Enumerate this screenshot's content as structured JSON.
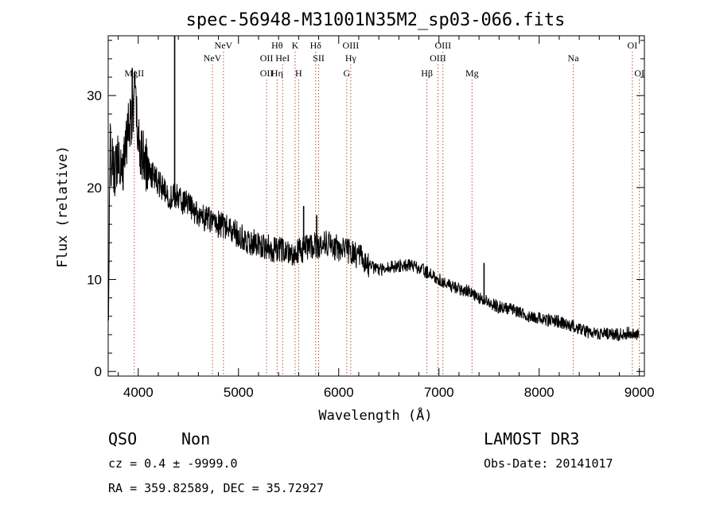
{
  "chart_data": {
    "type": "line",
    "title": "spec-56948-M31001N35M2_sp03-066.fits",
    "xlabel": "Wavelength (Å)",
    "ylabel": "Flux (relative)",
    "xlim": [
      3700,
      9050
    ],
    "ylim": [
      -0.5,
      36.5
    ],
    "x_ticks": [
      4000,
      5000,
      6000,
      7000,
      8000,
      9000
    ],
    "y_ticks": [
      0,
      10,
      20,
      30
    ],
    "anchors": [
      [
        3700,
        4.5
      ],
      [
        3720,
        24
      ],
      [
        3760,
        21
      ],
      [
        3800,
        24
      ],
      [
        3850,
        22
      ],
      [
        3900,
        27
      ],
      [
        3950,
        28
      ],
      [
        3960,
        31
      ],
      [
        4000,
        25
      ],
      [
        4050,
        23
      ],
      [
        4100,
        22
      ],
      [
        4200,
        20.5
      ],
      [
        4300,
        19
      ],
      [
        4400,
        19
      ],
      [
        4500,
        18
      ],
      [
        4600,
        17
      ],
      [
        4700,
        16.5
      ],
      [
        4800,
        16
      ],
      [
        4900,
        15.5
      ],
      [
        5000,
        14.8
      ],
      [
        5100,
        14.2
      ],
      [
        5200,
        13.8
      ],
      [
        5300,
        13.5
      ],
      [
        5400,
        13.2
      ],
      [
        5500,
        13
      ],
      [
        5600,
        13
      ],
      [
        5700,
        13.5
      ],
      [
        5800,
        13.8
      ],
      [
        5900,
        14
      ],
      [
        6000,
        13.3
      ],
      [
        6100,
        13
      ],
      [
        6200,
        12.5
      ],
      [
        6300,
        11.5
      ],
      [
        6400,
        11
      ],
      [
        6500,
        11.3
      ],
      [
        6600,
        11.5
      ],
      [
        6700,
        11.6
      ],
      [
        6800,
        11.2
      ],
      [
        6900,
        10.7
      ],
      [
        7000,
        10
      ],
      [
        7100,
        9.4
      ],
      [
        7200,
        9
      ],
      [
        7300,
        8.7
      ],
      [
        7400,
        8
      ],
      [
        7500,
        7.5
      ],
      [
        7600,
        7
      ],
      [
        7700,
        6.8
      ],
      [
        7800,
        6.5
      ],
      [
        7900,
        6
      ],
      [
        8000,
        5.8
      ],
      [
        8100,
        5.6
      ],
      [
        8200,
        5.4
      ],
      [
        8300,
        5
      ],
      [
        8400,
        4.6
      ],
      [
        8500,
        4.2
      ],
      [
        8600,
        4.1
      ],
      [
        8700,
        4.1
      ],
      [
        8800,
        4
      ],
      [
        8900,
        4.2
      ],
      [
        9000,
        4
      ]
    ],
    "spikes": [
      {
        "x": 4363,
        "y": 36.5
      },
      {
        "x": 5780,
        "y": 17
      },
      {
        "x": 5650,
        "y": 18
      },
      {
        "x": 7450,
        "y": 11.8
      },
      {
        "x": 3940,
        "y": 33
      }
    ],
    "lines": [
      {
        "name": "MgII",
        "x": 3960,
        "row": 3
      },
      {
        "name": "NeV",
        "x": 4740,
        "row": 2
      },
      {
        "name": "NeV",
        "x": 4850,
        "row": 1
      },
      {
        "name": "OII",
        "x": 5280,
        "row": 2
      },
      {
        "name": "OII",
        "x": 5280,
        "row": 3
      },
      {
        "name": "Hθ",
        "x": 5385,
        "row": 1
      },
      {
        "name": "Hη",
        "x": 5385,
        "row": 3
      },
      {
        "name": "HeI",
        "x": 5440,
        "row": 2
      },
      {
        "name": "K",
        "x": 5565,
        "row": 1
      },
      {
        "name": "H",
        "x": 5600,
        "row": 3
      },
      {
        "name": "Hδ",
        "x": 5770,
        "row": 1
      },
      {
        "name": "SII",
        "x": 5800,
        "row": 2
      },
      {
        "name": "OIII",
        "x": 6120,
        "row": 1
      },
      {
        "name": "Hγ",
        "x": 6120,
        "row": 2
      },
      {
        "name": "G",
        "x": 6080,
        "row": 3
      },
      {
        "name": "Hβ",
        "x": 6880,
        "row": 3
      },
      {
        "name": "OIII",
        "x": 7040,
        "row": 1
      },
      {
        "name": "OIII",
        "x": 6990,
        "row": 2
      },
      {
        "name": "Mg",
        "x": 7330,
        "row": 3
      },
      {
        "name": "Na",
        "x": 8340,
        "row": 2
      },
      {
        "name": "OI",
        "x": 8930,
        "row": 1
      },
      {
        "name": "OI",
        "x": 9000,
        "row": 3
      }
    ]
  },
  "info": {
    "class": "QSO",
    "subclass": "Non",
    "cz": "cz = 0.4 ± -9999.0",
    "radec": "RA = 359.82589, DEC =  35.72927",
    "survey": "LAMOST DR3",
    "obsdate": "Obs-Date: 20141017"
  }
}
